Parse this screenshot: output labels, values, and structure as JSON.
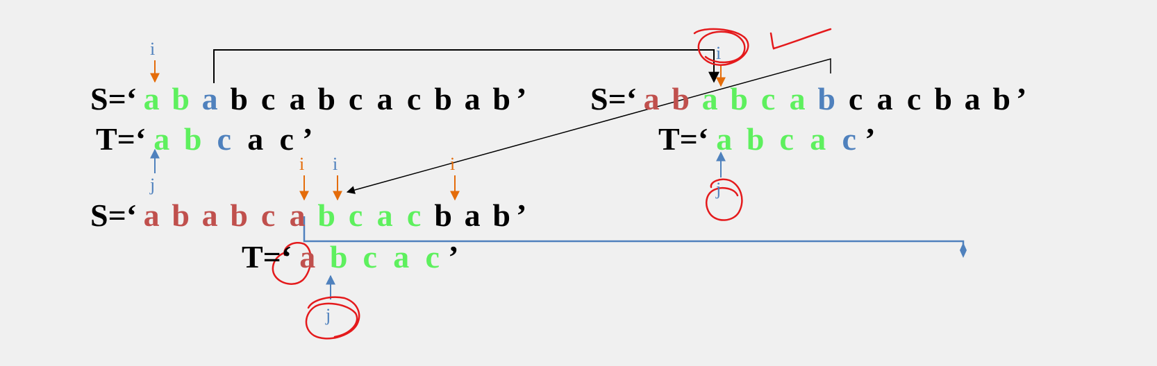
{
  "palette": {
    "match": "#5ef05e",
    "mismatch": "#4f81bd",
    "done": "#c0504d",
    "plain": "#000000",
    "pointer_i": "#e46c0a",
    "pointer_j": "#4f81bd",
    "scribble": "#e41a1c"
  },
  "labels": {
    "i": "i",
    "j": "j"
  },
  "panel1": {
    "s_prefix": "S=‘",
    "s_chars": [
      "a",
      "b",
      "a",
      "b",
      "c",
      "a",
      "b",
      "c",
      "a",
      "c",
      "b",
      "a",
      "b"
    ],
    "s_colors": [
      "match",
      "match",
      "mismatch",
      "plain",
      "plain",
      "plain",
      "plain",
      "plain",
      "plain",
      "plain",
      "plain",
      "plain",
      "plain"
    ],
    "t_prefix": "T=‘",
    "t_chars": [
      "a",
      "b",
      "c",
      "a",
      "c"
    ],
    "t_colors": [
      "match",
      "match",
      "mismatch",
      "plain",
      "plain"
    ],
    "close": "’"
  },
  "panel2": {
    "s_prefix": "S=‘",
    "s_chars": [
      "a",
      "b",
      "a",
      "b",
      "c",
      "a",
      "b",
      "c",
      "a",
      "c",
      "b",
      "a",
      "b"
    ],
    "s_colors": [
      "done",
      "done",
      "match",
      "match",
      "match",
      "match",
      "mismatch",
      "plain",
      "plain",
      "plain",
      "plain",
      "plain",
      "plain"
    ],
    "t_prefix": "T=‘",
    "t_chars": [
      "a",
      "b",
      "c",
      "a",
      "c"
    ],
    "t_colors": [
      "match",
      "match",
      "match",
      "match",
      "mismatch"
    ],
    "close": "’"
  },
  "panel3": {
    "s_prefix": "S=‘",
    "s_chars": [
      "a",
      "b",
      "a",
      "b",
      "c",
      "a",
      "b",
      "c",
      "a",
      "c",
      "b",
      "a",
      "b"
    ],
    "s_colors": [
      "done",
      "done",
      "done",
      "done",
      "done",
      "done",
      "match",
      "match",
      "match",
      "match",
      "plain",
      "plain",
      "plain"
    ],
    "t_prefix": "T=‘",
    "t_chars": [
      "a",
      "b",
      "c",
      "a",
      "c"
    ],
    "t_colors": [
      "done",
      "match",
      "match",
      "match",
      "match"
    ],
    "close": "’"
  }
}
